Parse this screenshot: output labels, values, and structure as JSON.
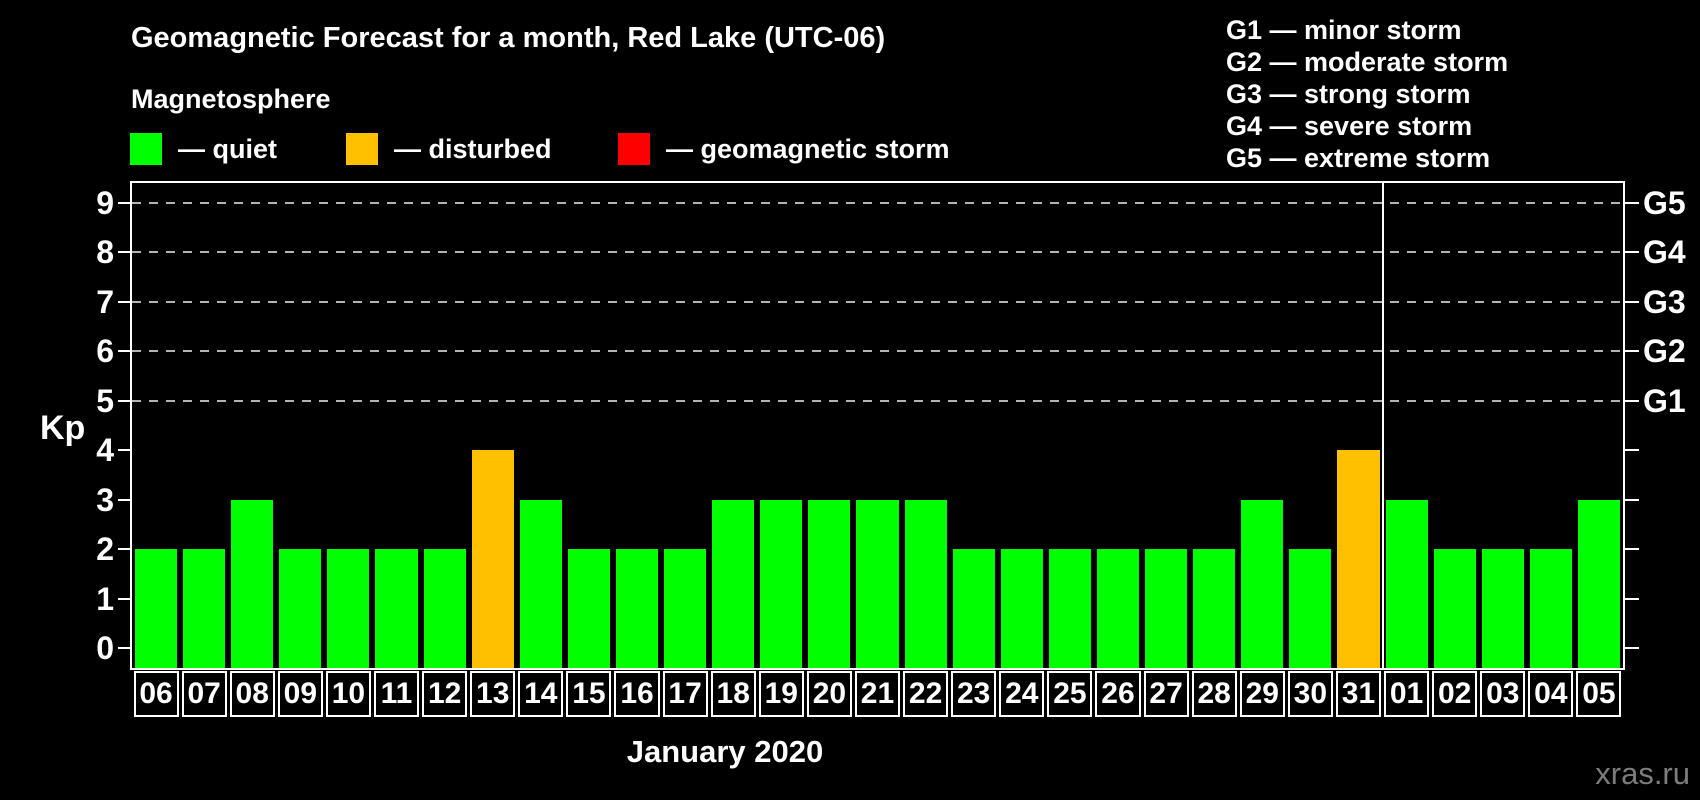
{
  "title": "Geomagnetic Forecast for a month, Red Lake (UTC-06)",
  "subtitle": "Magnetosphere",
  "legend": {
    "items": [
      {
        "key": "quiet",
        "label": "— quiet",
        "color": "#00ff00"
      },
      {
        "key": "disturbed",
        "label": "— disturbed",
        "color": "#ffc000"
      },
      {
        "key": "storm",
        "label": "— geomagnetic storm",
        "color": "#ff0000"
      }
    ]
  },
  "g_legend": [
    "G1 — minor storm",
    "G2 — moderate storm",
    "G3 — strong storm",
    "G4 — severe storm",
    "G5 — extreme storm"
  ],
  "chart_data": {
    "type": "bar",
    "title": "Geomagnetic Forecast for a month, Red Lake (UTC-06)",
    "ylabel": "Kp",
    "xlabel": "January 2020",
    "ylim": [
      0,
      9
    ],
    "yticks": [
      0,
      1,
      2,
      3,
      4,
      5,
      6,
      7,
      8,
      9
    ],
    "gridlines_at": [
      5,
      6,
      7,
      8,
      9
    ],
    "grid": "dashed horizontal lines at storm levels G1-G5",
    "legend_position": "top",
    "right_axis": [
      {
        "label": "G1",
        "value": 5
      },
      {
        "label": "G2",
        "value": 6
      },
      {
        "label": "G3",
        "value": 7
      },
      {
        "label": "G4",
        "value": 8
      },
      {
        "label": "G5",
        "value": 9
      }
    ],
    "status_colors": {
      "quiet": "#00ff00",
      "disturbed": "#ffc000",
      "storm": "#ff0000"
    },
    "categories": [
      "06",
      "07",
      "08",
      "09",
      "10",
      "11",
      "12",
      "13",
      "14",
      "15",
      "16",
      "17",
      "18",
      "19",
      "20",
      "21",
      "22",
      "23",
      "24",
      "25",
      "26",
      "27",
      "28",
      "29",
      "30",
      "31",
      "01",
      "02",
      "03",
      "04",
      "05"
    ],
    "values": [
      2,
      2,
      3,
      2,
      2,
      2,
      2,
      4,
      3,
      2,
      2,
      2,
      3,
      3,
      3,
      3,
      3,
      2,
      2,
      2,
      2,
      2,
      2,
      3,
      2,
      4,
      3,
      2,
      2,
      2,
      3
    ],
    "statuses": [
      "quiet",
      "quiet",
      "quiet",
      "quiet",
      "quiet",
      "quiet",
      "quiet",
      "disturbed",
      "quiet",
      "quiet",
      "quiet",
      "quiet",
      "quiet",
      "quiet",
      "quiet",
      "quiet",
      "quiet",
      "quiet",
      "quiet",
      "quiet",
      "quiet",
      "quiet",
      "quiet",
      "quiet",
      "quiet",
      "disturbed",
      "quiet",
      "quiet",
      "quiet",
      "quiet",
      "quiet"
    ],
    "month_boundary_after_index": 25
  },
  "footer": {
    "month_label": "January 2020",
    "watermark": "xras.ru"
  }
}
